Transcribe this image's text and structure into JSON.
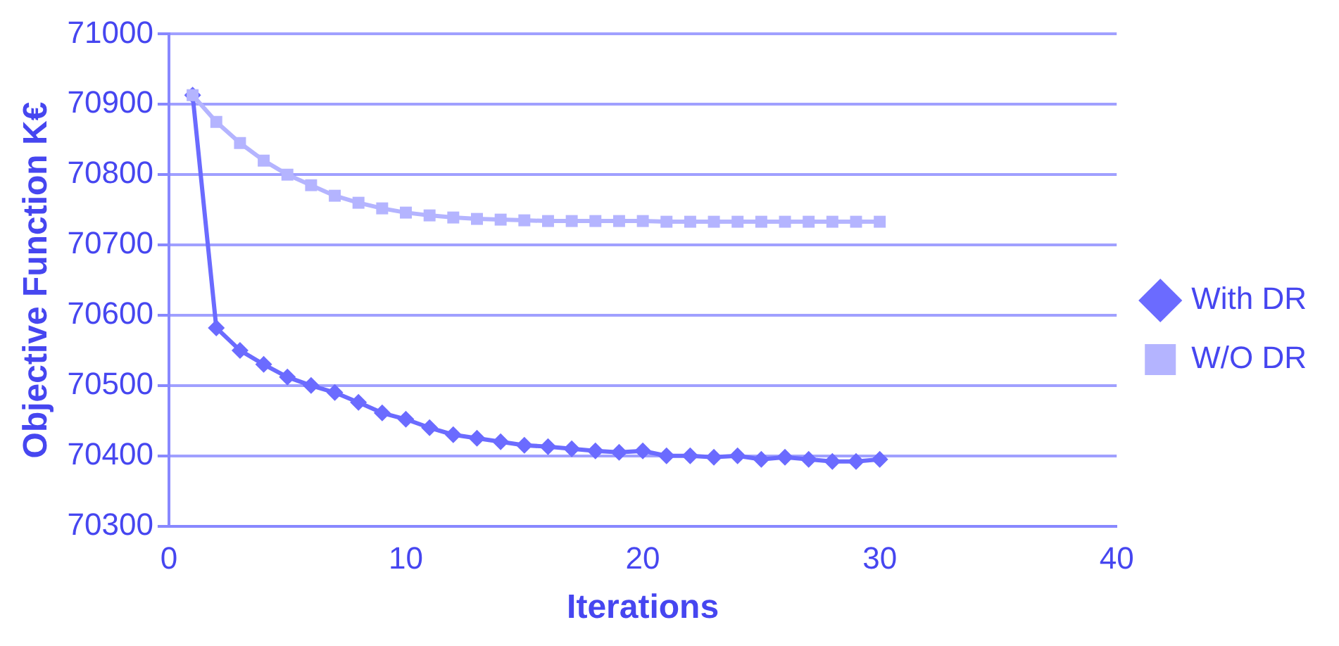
{
  "chart_data": {
    "type": "line",
    "xlabel": "Iterations",
    "ylabel": "Objective Function K€",
    "x": [
      1,
      2,
      3,
      4,
      5,
      6,
      7,
      8,
      9,
      10,
      11,
      12,
      13,
      14,
      15,
      16,
      17,
      18,
      19,
      20,
      21,
      22,
      23,
      24,
      25,
      26,
      27,
      28,
      29,
      30
    ],
    "series": [
      {
        "name": "With DR",
        "color": "#6b6bff",
        "marker": "diamond",
        "values": [
          70913,
          70582,
          70550,
          70530,
          70512,
          70500,
          70490,
          70476,
          70461,
          70452,
          70440,
          70430,
          70425,
          70420,
          70415,
          70413,
          70410,
          70407,
          70405,
          70407,
          70400,
          70400,
          70398,
          70400,
          70395,
          70398,
          70395,
          70392,
          70392,
          70395
        ]
      },
      {
        "name": "W/O DR",
        "color": "#b4b4ff",
        "marker": "square",
        "values": [
          70913,
          70875,
          70845,
          70820,
          70800,
          70785,
          70770,
          70760,
          70752,
          70746,
          70742,
          70739,
          70737,
          70736,
          70735,
          70734,
          70734,
          70734,
          70734,
          70734,
          70733,
          70733,
          70733,
          70733,
          70733,
          70733,
          70733,
          70733,
          70733,
          70733
        ]
      }
    ],
    "xlim": [
      0,
      40
    ],
    "xticks": [
      0,
      10,
      20,
      30,
      40
    ],
    "ylim": [
      70300,
      71000
    ],
    "yticks": [
      70300,
      70400,
      70500,
      70600,
      70700,
      70800,
      70900,
      71000
    ],
    "grid": "y",
    "legend": "right",
    "line_style": "solid"
  }
}
